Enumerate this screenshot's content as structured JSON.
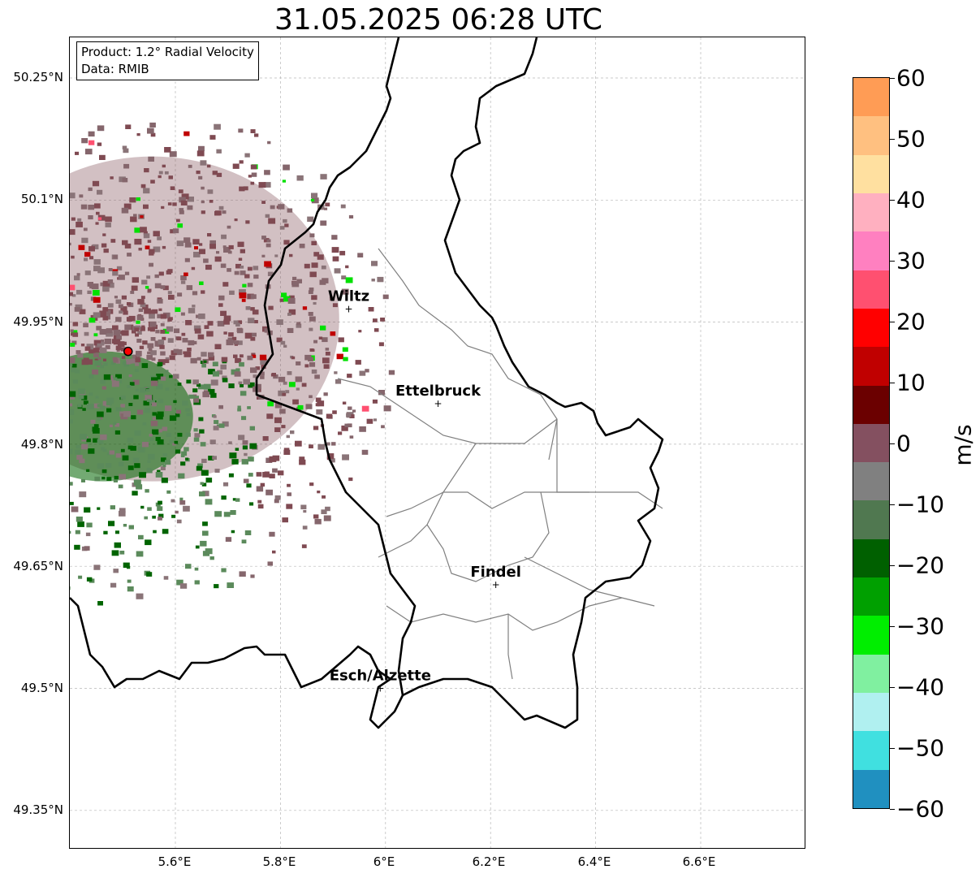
{
  "title": "31.05.2025 06:28 UTC",
  "product_box": {
    "line1": "Product: 1.2° Radial Velocity",
    "line2": "Data: RMIB"
  },
  "map": {
    "lat_labels": [
      "50.25°N",
      "50.1°N",
      "49.95°N",
      "49.8°N",
      "49.65°N",
      "49.5°N",
      "49.35°N"
    ],
    "lon_labels": [
      "5.6°E",
      "5.8°E",
      "6°E",
      "6.2°E",
      "6.4°E",
      "6.6°E"
    ],
    "cities": [
      {
        "name": "Wiltz",
        "lon": 5.93,
        "lat": 49.966
      },
      {
        "name": "Ettelbruck",
        "lon": 6.1,
        "lat": 49.85
      },
      {
        "name": "Findel",
        "lon": 6.21,
        "lat": 49.627
      },
      {
        "name": "Esch/Alzette",
        "lon": 5.99,
        "lat": 49.5
      }
    ],
    "radar_site": {
      "lon": 5.51,
      "lat": 49.914
    }
  },
  "colorbar": {
    "label": "m/s",
    "ticks": [
      "60",
      "50",
      "40",
      "30",
      "20",
      "10",
      "0",
      "−10",
      "−20",
      "−30",
      "−40",
      "−50",
      "−60"
    ],
    "range": [
      -60,
      60
    ],
    "colors": [
      "#ff9c55",
      "#ffc080",
      "#ffe0a0",
      "#ffb0c0",
      "#ff80c0",
      "#ff5070",
      "#ff0000",
      "#c00000",
      "#6b0000",
      "#845060",
      "#808080",
      "#507850",
      "#006000",
      "#00a000",
      "#00ee00",
      "#80f0a0",
      "#b0f0f0",
      "#40e0e0",
      "#2090c0"
    ]
  }
}
